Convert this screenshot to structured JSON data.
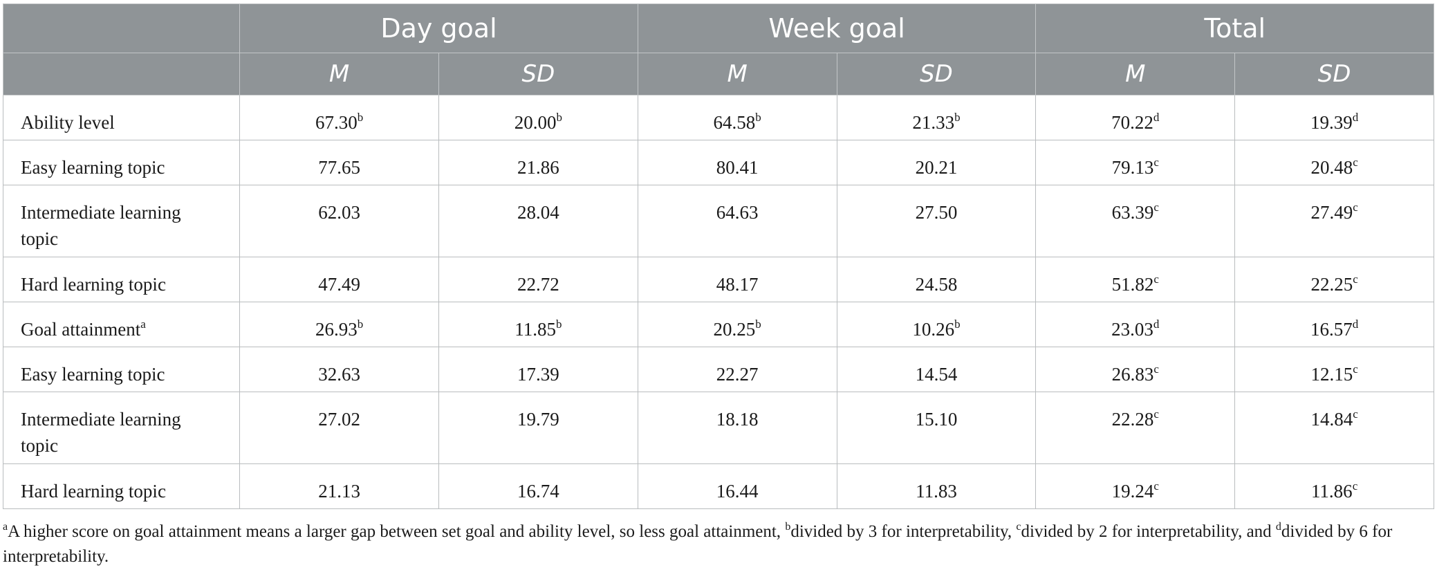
{
  "table": {
    "groups": [
      "Day goal",
      "Week goal",
      "Total"
    ],
    "stats": [
      "M",
      "SD"
    ],
    "rows": [
      {
        "label": "Ability level",
        "label_sup": "",
        "cells": [
          {
            "v": "67.30",
            "s": "b"
          },
          {
            "v": "20.00",
            "s": "b"
          },
          {
            "v": "64.58",
            "s": "b"
          },
          {
            "v": "21.33",
            "s": "b"
          },
          {
            "v": "70.22",
            "s": "d"
          },
          {
            "v": "19.39",
            "s": "d"
          }
        ]
      },
      {
        "label": "Easy learning topic",
        "label_sup": "",
        "cells": [
          {
            "v": "77.65",
            "s": ""
          },
          {
            "v": "21.86",
            "s": ""
          },
          {
            "v": "80.41",
            "s": ""
          },
          {
            "v": "20.21",
            "s": ""
          },
          {
            "v": "79.13",
            "s": "c"
          },
          {
            "v": "20.48",
            "s": "c"
          }
        ]
      },
      {
        "label": "Intermediate learning topic",
        "label_sup": "",
        "cells": [
          {
            "v": "62.03",
            "s": ""
          },
          {
            "v": "28.04",
            "s": ""
          },
          {
            "v": "64.63",
            "s": ""
          },
          {
            "v": "27.50",
            "s": ""
          },
          {
            "v": "63.39",
            "s": "c"
          },
          {
            "v": "27.49",
            "s": "c"
          }
        ]
      },
      {
        "label": "Hard learning topic",
        "label_sup": "",
        "cells": [
          {
            "v": "47.49",
            "s": ""
          },
          {
            "v": "22.72",
            "s": ""
          },
          {
            "v": "48.17",
            "s": ""
          },
          {
            "v": "24.58",
            "s": ""
          },
          {
            "v": "51.82",
            "s": "c"
          },
          {
            "v": "22.25",
            "s": "c"
          }
        ]
      },
      {
        "label": "Goal attainment",
        "label_sup": "a",
        "cells": [
          {
            "v": "26.93",
            "s": "b"
          },
          {
            "v": "11.85",
            "s": "b"
          },
          {
            "v": "20.25",
            "s": "b"
          },
          {
            "v": "10.26",
            "s": "b"
          },
          {
            "v": "23.03",
            "s": "d"
          },
          {
            "v": "16.57",
            "s": "d"
          }
        ]
      },
      {
        "label": "Easy learning topic",
        "label_sup": "",
        "cells": [
          {
            "v": "32.63",
            "s": ""
          },
          {
            "v": "17.39",
            "s": ""
          },
          {
            "v": "22.27",
            "s": ""
          },
          {
            "v": "14.54",
            "s": ""
          },
          {
            "v": "26.83",
            "s": "c"
          },
          {
            "v": "12.15",
            "s": "c"
          }
        ]
      },
      {
        "label": "Intermediate learning topic",
        "label_sup": "",
        "cells": [
          {
            "v": "27.02",
            "s": ""
          },
          {
            "v": "19.79",
            "s": ""
          },
          {
            "v": "18.18",
            "s": ""
          },
          {
            "v": "15.10",
            "s": ""
          },
          {
            "v": "22.28",
            "s": "c"
          },
          {
            "v": "14.84",
            "s": "c"
          }
        ]
      },
      {
        "label": "Hard learning topic",
        "label_sup": "",
        "cells": [
          {
            "v": "21.13",
            "s": ""
          },
          {
            "v": "16.74",
            "s": ""
          },
          {
            "v": "16.44",
            "s": ""
          },
          {
            "v": "11.83",
            "s": ""
          },
          {
            "v": "19.24",
            "s": "c"
          },
          {
            "v": "11.86",
            "s": "c"
          }
        ]
      }
    ]
  },
  "footnote": {
    "a_mark": "a",
    "a_text": "A higher score on goal attainment means a larger gap between set goal and ability level, so less goal attainment, ",
    "b_mark": "b",
    "b_text": "divided by 3 for interpretability, ",
    "c_mark": "c",
    "c_text": "divided by 2 for interpretability, and ",
    "d_mark": "d",
    "d_text": "divided by 6 for interpretability."
  }
}
